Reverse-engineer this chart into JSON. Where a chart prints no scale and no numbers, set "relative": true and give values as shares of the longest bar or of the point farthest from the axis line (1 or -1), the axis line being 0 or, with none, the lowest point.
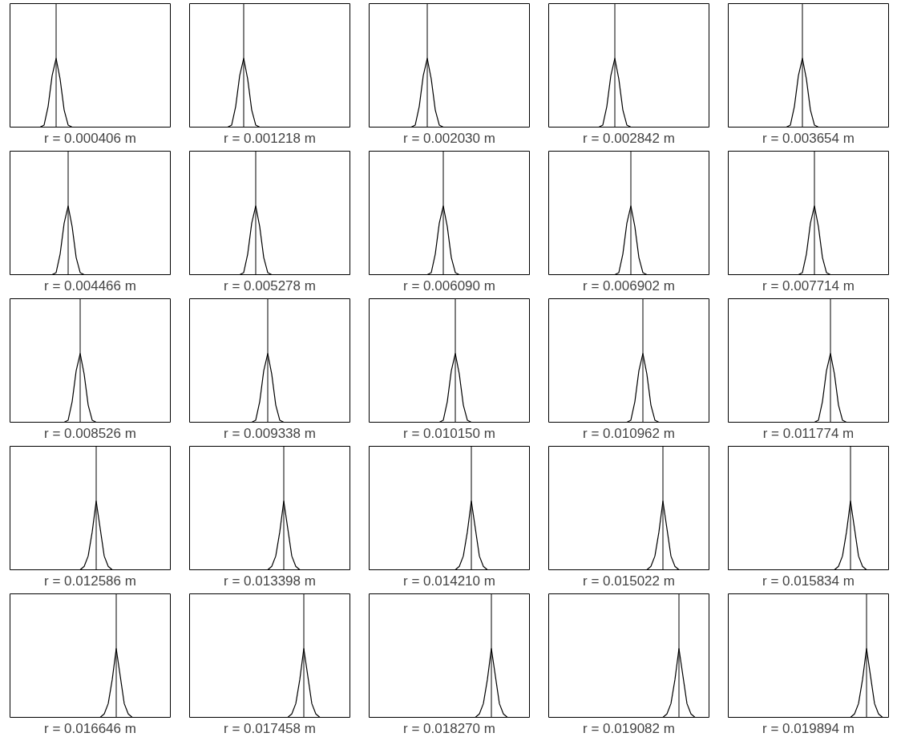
{
  "chart_data": [
    {
      "type": "line",
      "relative": true,
      "color": "#000000",
      "xlabel": "r = 0.000406 m",
      "categories": [
        null,
        null,
        null,
        null,
        null,
        null,
        null,
        null,
        null,
        null,
        null,
        null,
        null,
        null,
        null,
        null,
        null,
        null,
        null,
        null,
        null,
        null,
        null,
        null,
        null,
        null,
        null,
        null,
        null,
        null,
        null,
        null,
        null,
        null,
        null,
        null,
        null,
        null,
        null,
        null
      ],
      "values": [
        0,
        0,
        0,
        0,
        0,
        0,
        0,
        0,
        0.03,
        0.3,
        0.75,
        1,
        0.7,
        0.25,
        0.03,
        0,
        0,
        0,
        0,
        0,
        0,
        0,
        0,
        0,
        0,
        0,
        0,
        0,
        0,
        0,
        0,
        0,
        0,
        0,
        0,
        0,
        0,
        0,
        0,
        0
      ]
    },
    {
      "type": "line",
      "relative": true,
      "color": "#000000",
      "xlabel": "r = 0.001218 m",
      "categories": [
        null,
        null,
        null,
        null,
        null,
        null,
        null,
        null,
        null,
        null,
        null,
        null,
        null,
        null,
        null,
        null,
        null,
        null,
        null,
        null,
        null,
        null,
        null,
        null,
        null,
        null,
        null,
        null,
        null,
        null,
        null,
        null,
        null,
        null,
        null,
        null,
        null,
        null,
        null,
        null
      ],
      "values": [
        0,
        0,
        0,
        0,
        0,
        0,
        0,
        0,
        0,
        0,
        0.03,
        0.3,
        0.75,
        1,
        0.7,
        0.25,
        0.03,
        0,
        0,
        0,
        0,
        0,
        0,
        0,
        0,
        0,
        0,
        0,
        0,
        0,
        0,
        0,
        0,
        0,
        0,
        0,
        0,
        0,
        0,
        0
      ]
    },
    {
      "type": "line",
      "relative": true,
      "color": "#000000",
      "xlabel": "r = 0.002030 m",
      "categories": [
        null,
        null,
        null,
        null,
        null,
        null,
        null,
        null,
        null,
        null,
        null,
        null,
        null,
        null,
        null,
        null,
        null,
        null,
        null,
        null,
        null,
        null,
        null,
        null,
        null,
        null,
        null,
        null,
        null,
        null,
        null,
        null,
        null,
        null,
        null,
        null,
        null,
        null,
        null,
        null
      ],
      "values": [
        0,
        0,
        0,
        0,
        0,
        0,
        0,
        0,
        0,
        0,
        0,
        0.03,
        0.3,
        0.75,
        1,
        0.7,
        0.25,
        0.03,
        0,
        0,
        0,
        0,
        0,
        0,
        0,
        0,
        0,
        0,
        0,
        0,
        0,
        0,
        0,
        0,
        0,
        0,
        0,
        0,
        0,
        0
      ]
    },
    {
      "type": "line",
      "relative": true,
      "color": "#000000",
      "xlabel": "r = 0.002842 m",
      "categories": [
        null,
        null,
        null,
        null,
        null,
        null,
        null,
        null,
        null,
        null,
        null,
        null,
        null,
        null,
        null,
        null,
        null,
        null,
        null,
        null,
        null,
        null,
        null,
        null,
        null,
        null,
        null,
        null,
        null,
        null,
        null,
        null,
        null,
        null,
        null,
        null,
        null,
        null,
        null,
        null
      ],
      "values": [
        0,
        0,
        0,
        0,
        0,
        0,
        0,
        0,
        0,
        0,
        0,
        0,
        0,
        0.03,
        0.3,
        0.75,
        1,
        0.7,
        0.25,
        0.03,
        0,
        0,
        0,
        0,
        0,
        0,
        0,
        0,
        0,
        0,
        0,
        0,
        0,
        0,
        0,
        0,
        0,
        0,
        0,
        0
      ]
    },
    {
      "type": "line",
      "relative": true,
      "color": "#000000",
      "xlabel": "r = 0.003654 m",
      "categories": [
        null,
        null,
        null,
        null,
        null,
        null,
        null,
        null,
        null,
        null,
        null,
        null,
        null,
        null,
        null,
        null,
        null,
        null,
        null,
        null,
        null,
        null,
        null,
        null,
        null,
        null,
        null,
        null,
        null,
        null,
        null,
        null,
        null,
        null,
        null,
        null,
        null,
        null,
        null,
        null
      ],
      "values": [
        0,
        0,
        0,
        0,
        0,
        0,
        0,
        0,
        0,
        0,
        0,
        0,
        0,
        0,
        0,
        0.03,
        0.3,
        0.75,
        1,
        0.7,
        0.25,
        0.03,
        0,
        0,
        0,
        0,
        0,
        0,
        0,
        0,
        0,
        0,
        0,
        0,
        0,
        0,
        0,
        0,
        0,
        0
      ]
    },
    {
      "type": "line",
      "relative": true,
      "color": "#000000",
      "xlabel": "r = 0.004466 m",
      "categories": [
        null,
        null,
        null,
        null,
        null,
        null,
        null,
        null,
        null,
        null,
        null,
        null,
        null,
        null,
        null,
        null,
        null,
        null,
        null,
        null,
        null,
        null,
        null,
        null,
        null,
        null,
        null,
        null,
        null,
        null,
        null,
        null,
        null,
        null,
        null,
        null,
        null,
        null,
        null,
        null
      ],
      "values": [
        0,
        0,
        0,
        0,
        0,
        0,
        0,
        0,
        0,
        0,
        0,
        0.03,
        0.3,
        0.75,
        1,
        0.7,
        0.25,
        0.03,
        0,
        0,
        0,
        0,
        0,
        0,
        0,
        0,
        0,
        0,
        0,
        0,
        0,
        0,
        0,
        0,
        0,
        0,
        0,
        0,
        0,
        0
      ]
    },
    {
      "type": "line",
      "relative": true,
      "color": "#000000",
      "xlabel": "r = 0.005278 m",
      "categories": [
        null,
        null,
        null,
        null,
        null,
        null,
        null,
        null,
        null,
        null,
        null,
        null,
        null,
        null,
        null,
        null,
        null,
        null,
        null,
        null,
        null,
        null,
        null,
        null,
        null,
        null,
        null,
        null,
        null,
        null,
        null,
        null,
        null,
        null,
        null,
        null,
        null,
        null,
        null,
        null
      ],
      "values": [
        0,
        0,
        0,
        0,
        0,
        0,
        0,
        0,
        0,
        0,
        0,
        0,
        0,
        0.03,
        0.3,
        0.75,
        1,
        0.7,
        0.25,
        0.03,
        0,
        0,
        0,
        0,
        0,
        0,
        0,
        0,
        0,
        0,
        0,
        0,
        0,
        0,
        0,
        0,
        0,
        0,
        0,
        0
      ]
    },
    {
      "type": "line",
      "relative": true,
      "color": "#000000",
      "xlabel": "r = 0.006090 m",
      "categories": [
        null,
        null,
        null,
        null,
        null,
        null,
        null,
        null,
        null,
        null,
        null,
        null,
        null,
        null,
        null,
        null,
        null,
        null,
        null,
        null,
        null,
        null,
        null,
        null,
        null,
        null,
        null,
        null,
        null,
        null,
        null,
        null,
        null,
        null,
        null,
        null,
        null,
        null,
        null,
        null
      ],
      "values": [
        0,
        0,
        0,
        0,
        0,
        0,
        0,
        0,
        0,
        0,
        0,
        0,
        0,
        0,
        0,
        0.03,
        0.3,
        0.75,
        1,
        0.7,
        0.25,
        0.03,
        0,
        0,
        0,
        0,
        0,
        0,
        0,
        0,
        0,
        0,
        0,
        0,
        0,
        0,
        0,
        0,
        0,
        0
      ]
    },
    {
      "type": "line",
      "relative": true,
      "color": "#000000",
      "xlabel": "r = 0.006902 m",
      "categories": [
        null,
        null,
        null,
        null,
        null,
        null,
        null,
        null,
        null,
        null,
        null,
        null,
        null,
        null,
        null,
        null,
        null,
        null,
        null,
        null,
        null,
        null,
        null,
        null,
        null,
        null,
        null,
        null,
        null,
        null,
        null,
        null,
        null,
        null,
        null,
        null,
        null,
        null,
        null,
        null
      ],
      "values": [
        0,
        0,
        0,
        0,
        0,
        0,
        0,
        0,
        0,
        0,
        0,
        0,
        0,
        0,
        0,
        0,
        0,
        0.03,
        0.3,
        0.75,
        1,
        0.7,
        0.25,
        0.03,
        0,
        0,
        0,
        0,
        0,
        0,
        0,
        0,
        0,
        0,
        0,
        0,
        0,
        0,
        0,
        0
      ]
    },
    {
      "type": "line",
      "relative": true,
      "color": "#000000",
      "xlabel": "r = 0.007714 m",
      "categories": [
        null,
        null,
        null,
        null,
        null,
        null,
        null,
        null,
        null,
        null,
        null,
        null,
        null,
        null,
        null,
        null,
        null,
        null,
        null,
        null,
        null,
        null,
        null,
        null,
        null,
        null,
        null,
        null,
        null,
        null,
        null,
        null,
        null,
        null,
        null,
        null,
        null,
        null,
        null,
        null
      ],
      "values": [
        0,
        0,
        0,
        0,
        0,
        0,
        0,
        0,
        0,
        0,
        0,
        0,
        0,
        0,
        0,
        0,
        0,
        0,
        0.03,
        0.3,
        0.75,
        1,
        0.7,
        0.25,
        0.03,
        0,
        0,
        0,
        0,
        0,
        0,
        0,
        0,
        0,
        0,
        0,
        0,
        0,
        0,
        0
      ]
    },
    {
      "type": "line",
      "relative": true,
      "color": "#000000",
      "xlabel": "r = 0.008526 m",
      "categories": [
        null,
        null,
        null,
        null,
        null,
        null,
        null,
        null,
        null,
        null,
        null,
        null,
        null,
        null,
        null,
        null,
        null,
        null,
        null,
        null,
        null,
        null,
        null,
        null,
        null,
        null,
        null,
        null,
        null,
        null,
        null,
        null,
        null,
        null,
        null,
        null,
        null,
        null,
        null,
        null
      ],
      "values": [
        0,
        0,
        0,
        0,
        0,
        0,
        0,
        0,
        0,
        0,
        0,
        0,
        0,
        0,
        0.03,
        0.3,
        0.75,
        1,
        0.7,
        0.25,
        0.03,
        0,
        0,
        0,
        0,
        0,
        0,
        0,
        0,
        0,
        0,
        0,
        0,
        0,
        0,
        0,
        0,
        0,
        0,
        0
      ]
    },
    {
      "type": "line",
      "relative": true,
      "color": "#000000",
      "xlabel": "r = 0.009338 m",
      "categories": [
        null,
        null,
        null,
        null,
        null,
        null,
        null,
        null,
        null,
        null,
        null,
        null,
        null,
        null,
        null,
        null,
        null,
        null,
        null,
        null,
        null,
        null,
        null,
        null,
        null,
        null,
        null,
        null,
        null,
        null,
        null,
        null,
        null,
        null,
        null,
        null,
        null,
        null,
        null,
        null
      ],
      "values": [
        0,
        0,
        0,
        0,
        0,
        0,
        0,
        0,
        0,
        0,
        0,
        0,
        0,
        0,
        0,
        0,
        0.03,
        0.3,
        0.75,
        1,
        0.7,
        0.25,
        0.03,
        0,
        0,
        0,
        0,
        0,
        0,
        0,
        0,
        0,
        0,
        0,
        0,
        0,
        0,
        0,
        0,
        0
      ]
    },
    {
      "type": "line",
      "relative": true,
      "color": "#000000",
      "xlabel": "r = 0.010150 m",
      "categories": [
        null,
        null,
        null,
        null,
        null,
        null,
        null,
        null,
        null,
        null,
        null,
        null,
        null,
        null,
        null,
        null,
        null,
        null,
        null,
        null,
        null,
        null,
        null,
        null,
        null,
        null,
        null,
        null,
        null,
        null,
        null,
        null,
        null,
        null,
        null,
        null,
        null,
        null,
        null,
        null
      ],
      "values": [
        0,
        0,
        0,
        0,
        0,
        0,
        0,
        0,
        0,
        0,
        0,
        0,
        0,
        0,
        0,
        0,
        0,
        0,
        0.03,
        0.3,
        0.75,
        1,
        0.7,
        0.25,
        0.03,
        0,
        0,
        0,
        0,
        0,
        0,
        0,
        0,
        0,
        0,
        0,
        0,
        0,
        0,
        0
      ]
    },
    {
      "type": "line",
      "relative": true,
      "color": "#000000",
      "xlabel": "r = 0.010962 m",
      "categories": [
        null,
        null,
        null,
        null,
        null,
        null,
        null,
        null,
        null,
        null,
        null,
        null,
        null,
        null,
        null,
        null,
        null,
        null,
        null,
        null,
        null,
        null,
        null,
        null,
        null,
        null,
        null,
        null,
        null,
        null,
        null,
        null,
        null,
        null,
        null,
        null,
        null,
        null,
        null,
        null
      ],
      "values": [
        0,
        0,
        0,
        0,
        0,
        0,
        0,
        0,
        0,
        0,
        0,
        0,
        0,
        0,
        0,
        0,
        0,
        0,
        0,
        0,
        0.03,
        0.3,
        0.75,
        1,
        0.7,
        0.25,
        0.03,
        0,
        0,
        0,
        0,
        0,
        0,
        0,
        0,
        0,
        0,
        0,
        0,
        0
      ]
    },
    {
      "type": "line",
      "relative": true,
      "color": "#000000",
      "xlabel": "r = 0.011774 m",
      "categories": [
        null,
        null,
        null,
        null,
        null,
        null,
        null,
        null,
        null,
        null,
        null,
        null,
        null,
        null,
        null,
        null,
        null,
        null,
        null,
        null,
        null,
        null,
        null,
        null,
        null,
        null,
        null,
        null,
        null,
        null,
        null,
        null,
        null,
        null,
        null,
        null,
        null,
        null,
        null,
        null
      ],
      "values": [
        0,
        0,
        0,
        0,
        0,
        0,
        0,
        0,
        0,
        0,
        0,
        0,
        0,
        0,
        0,
        0,
        0,
        0,
        0,
        0,
        0,
        0,
        0.03,
        0.3,
        0.75,
        1,
        0.7,
        0.25,
        0.03,
        0,
        0,
        0,
        0,
        0,
        0,
        0,
        0,
        0,
        0,
        0
      ]
    },
    {
      "type": "line",
      "relative": true,
      "color": "#000000",
      "xlabel": "r = 0.012586 m",
      "categories": [
        null,
        null,
        null,
        null,
        null,
        null,
        null,
        null,
        null,
        null,
        null,
        null,
        null,
        null,
        null,
        null,
        null,
        null,
        null,
        null,
        null,
        null,
        null,
        null,
        null,
        null,
        null,
        null,
        null,
        null,
        null,
        null,
        null,
        null,
        null,
        null,
        null,
        null,
        null,
        null
      ],
      "values": [
        0,
        0,
        0,
        0,
        0,
        0,
        0,
        0,
        0,
        0,
        0,
        0,
        0,
        0,
        0,
        0,
        0,
        0,
        0.05,
        0.2,
        0.55,
        1,
        0.6,
        0.2,
        0.05,
        0,
        0,
        0,
        0,
        0,
        0,
        0,
        0,
        0,
        0,
        0,
        0,
        0,
        0,
        0
      ]
    },
    {
      "type": "line",
      "relative": true,
      "color": "#000000",
      "xlabel": "r = 0.013398 m",
      "categories": [
        null,
        null,
        null,
        null,
        null,
        null,
        null,
        null,
        null,
        null,
        null,
        null,
        null,
        null,
        null,
        null,
        null,
        null,
        null,
        null,
        null,
        null,
        null,
        null,
        null,
        null,
        null,
        null,
        null,
        null,
        null,
        null,
        null,
        null,
        null,
        null,
        null,
        null,
        null,
        null
      ],
      "values": [
        0,
        0,
        0,
        0,
        0,
        0,
        0,
        0,
        0,
        0,
        0,
        0,
        0,
        0,
        0,
        0,
        0,
        0,
        0,
        0,
        0.05,
        0.2,
        0.55,
        1,
        0.6,
        0.2,
        0.05,
        0,
        0,
        0,
        0,
        0,
        0,
        0,
        0,
        0,
        0,
        0,
        0,
        0
      ]
    },
    {
      "type": "line",
      "relative": true,
      "color": "#000000",
      "xlabel": "r = 0.014210 m",
      "categories": [
        null,
        null,
        null,
        null,
        null,
        null,
        null,
        null,
        null,
        null,
        null,
        null,
        null,
        null,
        null,
        null,
        null,
        null,
        null,
        null,
        null,
        null,
        null,
        null,
        null,
        null,
        null,
        null,
        null,
        null,
        null,
        null,
        null,
        null,
        null,
        null,
        null,
        null,
        null,
        null
      ],
      "values": [
        0,
        0,
        0,
        0,
        0,
        0,
        0,
        0,
        0,
        0,
        0,
        0,
        0,
        0,
        0,
        0,
        0,
        0,
        0,
        0,
        0,
        0,
        0.05,
        0.2,
        0.55,
        1,
        0.6,
        0.2,
        0.05,
        0,
        0,
        0,
        0,
        0,
        0,
        0,
        0,
        0,
        0,
        0
      ]
    },
    {
      "type": "line",
      "relative": true,
      "color": "#000000",
      "xlabel": "r = 0.015022 m",
      "categories": [
        null,
        null,
        null,
        null,
        null,
        null,
        null,
        null,
        null,
        null,
        null,
        null,
        null,
        null,
        null,
        null,
        null,
        null,
        null,
        null,
        null,
        null,
        null,
        null,
        null,
        null,
        null,
        null,
        null,
        null,
        null,
        null,
        null,
        null,
        null,
        null,
        null,
        null,
        null,
        null
      ],
      "values": [
        0,
        0,
        0,
        0,
        0,
        0,
        0,
        0,
        0,
        0,
        0,
        0,
        0,
        0,
        0,
        0,
        0,
        0,
        0,
        0,
        0,
        0,
        0,
        0,
        0,
        0.05,
        0.2,
        0.55,
        1,
        0.6,
        0.2,
        0.05,
        0,
        0,
        0,
        0,
        0,
        0,
        0,
        0
      ]
    },
    {
      "type": "line",
      "relative": true,
      "color": "#000000",
      "xlabel": "r = 0.015834 m",
      "categories": [
        null,
        null,
        null,
        null,
        null,
        null,
        null,
        null,
        null,
        null,
        null,
        null,
        null,
        null,
        null,
        null,
        null,
        null,
        null,
        null,
        null,
        null,
        null,
        null,
        null,
        null,
        null,
        null,
        null,
        null,
        null,
        null,
        null,
        null,
        null,
        null,
        null,
        null,
        null,
        null
      ],
      "values": [
        0,
        0,
        0,
        0,
        0,
        0,
        0,
        0,
        0,
        0,
        0,
        0,
        0,
        0,
        0,
        0,
        0,
        0,
        0,
        0,
        0,
        0,
        0,
        0,
        0,
        0,
        0,
        0.05,
        0.2,
        0.55,
        1,
        0.6,
        0.2,
        0.05,
        0,
        0,
        0,
        0,
        0,
        0
      ]
    },
    {
      "type": "line",
      "relative": true,
      "color": "#000000",
      "xlabel": "r = 0.016646 m",
      "categories": [
        null,
        null,
        null,
        null,
        null,
        null,
        null,
        null,
        null,
        null,
        null,
        null,
        null,
        null,
        null,
        null,
        null,
        null,
        null,
        null,
        null,
        null,
        null,
        null,
        null,
        null,
        null,
        null,
        null,
        null,
        null,
        null,
        null,
        null,
        null,
        null,
        null,
        null,
        null,
        null
      ],
      "values": [
        0,
        0,
        0,
        0,
        0,
        0,
        0,
        0,
        0,
        0,
        0,
        0,
        0,
        0,
        0,
        0,
        0,
        0,
        0,
        0,
        0,
        0,
        0,
        0.05,
        0.2,
        0.55,
        1,
        0.6,
        0.2,
        0.05,
        0,
        0,
        0,
        0,
        0,
        0,
        0,
        0,
        0,
        0
      ]
    },
    {
      "type": "line",
      "relative": true,
      "color": "#000000",
      "xlabel": "r = 0.017458 m",
      "categories": [
        null,
        null,
        null,
        null,
        null,
        null,
        null,
        null,
        null,
        null,
        null,
        null,
        null,
        null,
        null,
        null,
        null,
        null,
        null,
        null,
        null,
        null,
        null,
        null,
        null,
        null,
        null,
        null,
        null,
        null,
        null,
        null,
        null,
        null,
        null,
        null,
        null,
        null,
        null,
        null
      ],
      "values": [
        0,
        0,
        0,
        0,
        0,
        0,
        0,
        0,
        0,
        0,
        0,
        0,
        0,
        0,
        0,
        0,
        0,
        0,
        0,
        0,
        0,
        0,
        0,
        0,
        0,
        0.05,
        0.2,
        0.55,
        1,
        0.6,
        0.2,
        0.05,
        0,
        0,
        0,
        0,
        0,
        0,
        0,
        0
      ]
    },
    {
      "type": "line",
      "relative": true,
      "color": "#000000",
      "xlabel": "r = 0.018270 m",
      "categories": [
        null,
        null,
        null,
        null,
        null,
        null,
        null,
        null,
        null,
        null,
        null,
        null,
        null,
        null,
        null,
        null,
        null,
        null,
        null,
        null,
        null,
        null,
        null,
        null,
        null,
        null,
        null,
        null,
        null,
        null,
        null,
        null,
        null,
        null,
        null,
        null,
        null,
        null,
        null,
        null
      ],
      "values": [
        0,
        0,
        0,
        0,
        0,
        0,
        0,
        0,
        0,
        0,
        0,
        0,
        0,
        0,
        0,
        0,
        0,
        0,
        0,
        0,
        0,
        0,
        0,
        0,
        0,
        0,
        0,
        0.05,
        0.2,
        0.55,
        1,
        0.6,
        0.2,
        0.05,
        0,
        0,
        0,
        0,
        0,
        0
      ]
    },
    {
      "type": "line",
      "relative": true,
      "color": "#000000",
      "xlabel": "r = 0.019082 m",
      "categories": [
        null,
        null,
        null,
        null,
        null,
        null,
        null,
        null,
        null,
        null,
        null,
        null,
        null,
        null,
        null,
        null,
        null,
        null,
        null,
        null,
        null,
        null,
        null,
        null,
        null,
        null,
        null,
        null,
        null,
        null,
        null,
        null,
        null,
        null,
        null,
        null,
        null,
        null,
        null,
        null
      ],
      "values": [
        0,
        0,
        0,
        0,
        0,
        0,
        0,
        0,
        0,
        0,
        0,
        0,
        0,
        0,
        0,
        0,
        0,
        0,
        0,
        0,
        0,
        0,
        0,
        0,
        0,
        0,
        0,
        0,
        0,
        0.05,
        0.2,
        0.55,
        1,
        0.6,
        0.2,
        0.05,
        0,
        0,
        0,
        0
      ]
    },
    {
      "type": "line",
      "relative": true,
      "color": "#000000",
      "xlabel": "r = 0.019894 m",
      "categories": [
        null,
        null,
        null,
        null,
        null,
        null,
        null,
        null,
        null,
        null,
        null,
        null,
        null,
        null,
        null,
        null,
        null,
        null,
        null,
        null,
        null,
        null,
        null,
        null,
        null,
        null,
        null,
        null,
        null,
        null,
        null,
        null,
        null,
        null,
        null,
        null,
        null,
        null,
        null,
        null
      ],
      "values": [
        0,
        0,
        0,
        0,
        0,
        0,
        0,
        0,
        0,
        0,
        0,
        0,
        0,
        0,
        0,
        0,
        0,
        0,
        0,
        0,
        0,
        0,
        0,
        0,
        0,
        0,
        0,
        0,
        0,
        0,
        0,
        0.05,
        0.2,
        0.55,
        1,
        0.6,
        0.2,
        0.05,
        0,
        0
      ]
    }
  ]
}
